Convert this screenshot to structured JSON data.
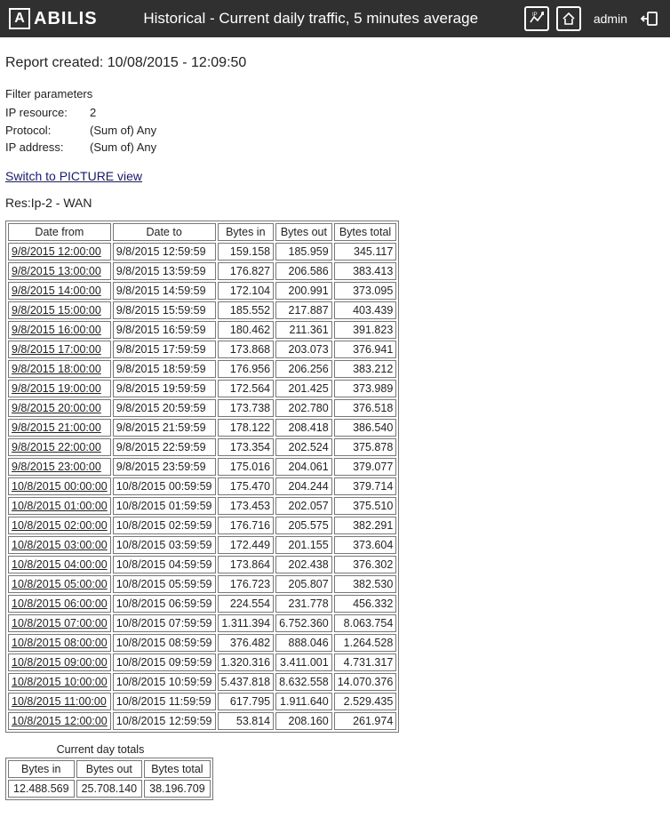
{
  "header": {
    "brand": "ABILIS",
    "title": "Historical - Current daily traffic, 5 minutes average",
    "user": "admin"
  },
  "report_created": "Report created: 10/08/2015 - 12:09:50",
  "filter": {
    "title": "Filter parameters",
    "ip_resource_label": "IP resource:",
    "ip_resource_value": "2",
    "protocol_label": "Protocol:",
    "protocol_value": "(Sum of) Any",
    "ip_address_label": "IP address:",
    "ip_address_value": "(Sum of) Any"
  },
  "switch_link": "Switch to PICTURE view",
  "res_title": "Res:Ip-2 - WAN",
  "columns": {
    "date_from": "Date from",
    "date_to": "Date to",
    "bytes_in": "Bytes in",
    "bytes_out": "Bytes out",
    "bytes_total": "Bytes total"
  },
  "rows": [
    {
      "from": "9/8/2015 12:00:00",
      "to": "9/8/2015 12:59:59",
      "in": "159.158",
      "out": "185.959",
      "total": "345.117"
    },
    {
      "from": "9/8/2015 13:00:00",
      "to": "9/8/2015 13:59:59",
      "in": "176.827",
      "out": "206.586",
      "total": "383.413"
    },
    {
      "from": "9/8/2015 14:00:00",
      "to": "9/8/2015 14:59:59",
      "in": "172.104",
      "out": "200.991",
      "total": "373.095"
    },
    {
      "from": "9/8/2015 15:00:00",
      "to": "9/8/2015 15:59:59",
      "in": "185.552",
      "out": "217.887",
      "total": "403.439"
    },
    {
      "from": "9/8/2015 16:00:00",
      "to": "9/8/2015 16:59:59",
      "in": "180.462",
      "out": "211.361",
      "total": "391.823"
    },
    {
      "from": "9/8/2015 17:00:00",
      "to": "9/8/2015 17:59:59",
      "in": "173.868",
      "out": "203.073",
      "total": "376.941"
    },
    {
      "from": "9/8/2015 18:00:00",
      "to": "9/8/2015 18:59:59",
      "in": "176.956",
      "out": "206.256",
      "total": "383.212"
    },
    {
      "from": "9/8/2015 19:00:00",
      "to": "9/8/2015 19:59:59",
      "in": "172.564",
      "out": "201.425",
      "total": "373.989"
    },
    {
      "from": "9/8/2015 20:00:00",
      "to": "9/8/2015 20:59:59",
      "in": "173.738",
      "out": "202.780",
      "total": "376.518"
    },
    {
      "from": "9/8/2015 21:00:00",
      "to": "9/8/2015 21:59:59",
      "in": "178.122",
      "out": "208.418",
      "total": "386.540"
    },
    {
      "from": "9/8/2015 22:00:00",
      "to": "9/8/2015 22:59:59",
      "in": "173.354",
      "out": "202.524",
      "total": "375.878"
    },
    {
      "from": "9/8/2015 23:00:00",
      "to": "9/8/2015 23:59:59",
      "in": "175.016",
      "out": "204.061",
      "total": "379.077"
    },
    {
      "from": "10/8/2015 00:00:00",
      "to": "10/8/2015 00:59:59",
      "in": "175.470",
      "out": "204.244",
      "total": "379.714"
    },
    {
      "from": "10/8/2015 01:00:00",
      "to": "10/8/2015 01:59:59",
      "in": "173.453",
      "out": "202.057",
      "total": "375.510"
    },
    {
      "from": "10/8/2015 02:00:00",
      "to": "10/8/2015 02:59:59",
      "in": "176.716",
      "out": "205.575",
      "total": "382.291"
    },
    {
      "from": "10/8/2015 03:00:00",
      "to": "10/8/2015 03:59:59",
      "in": "172.449",
      "out": "201.155",
      "total": "373.604"
    },
    {
      "from": "10/8/2015 04:00:00",
      "to": "10/8/2015 04:59:59",
      "in": "173.864",
      "out": "202.438",
      "total": "376.302"
    },
    {
      "from": "10/8/2015 05:00:00",
      "to": "10/8/2015 05:59:59",
      "in": "176.723",
      "out": "205.807",
      "total": "382.530"
    },
    {
      "from": "10/8/2015 06:00:00",
      "to": "10/8/2015 06:59:59",
      "in": "224.554",
      "out": "231.778",
      "total": "456.332"
    },
    {
      "from": "10/8/2015 07:00:00",
      "to": "10/8/2015 07:59:59",
      "in": "1.311.394",
      "out": "6.752.360",
      "total": "8.063.754"
    },
    {
      "from": "10/8/2015 08:00:00",
      "to": "10/8/2015 08:59:59",
      "in": "376.482",
      "out": "888.046",
      "total": "1.264.528"
    },
    {
      "from": "10/8/2015 09:00:00",
      "to": "10/8/2015 09:59:59",
      "in": "1.320.316",
      "out": "3.411.001",
      "total": "4.731.317"
    },
    {
      "from": "10/8/2015 10:00:00",
      "to": "10/8/2015 10:59:59",
      "in": "5.437.818",
      "out": "8.632.558",
      "total": "14.070.376"
    },
    {
      "from": "10/8/2015 11:00:00",
      "to": "10/8/2015 11:59:59",
      "in": "617.795",
      "out": "1.911.640",
      "total": "2.529.435"
    },
    {
      "from": "10/8/2015 12:00:00",
      "to": "10/8/2015 12:59:59",
      "in": "53.814",
      "out": "208.160",
      "total": "261.974"
    }
  ],
  "totals": {
    "caption": "Current day totals",
    "bytes_in_label": "Bytes in",
    "bytes_out_label": "Bytes out",
    "bytes_total_label": "Bytes total",
    "bytes_in": "12.488.569",
    "bytes_out": "25.708.140",
    "bytes_total": "38.196.709"
  }
}
